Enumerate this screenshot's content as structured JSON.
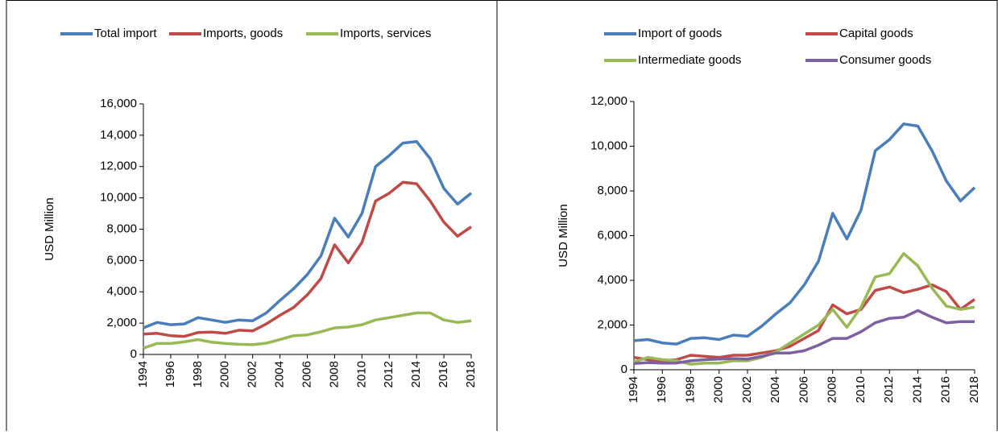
{
  "chart_data": [
    {
      "type": "line",
      "y_label": "USD Million",
      "x": [
        1994,
        1995,
        1996,
        1997,
        1998,
        1999,
        2000,
        2001,
        2002,
        2003,
        2004,
        2005,
        2006,
        2007,
        2008,
        2009,
        2010,
        2011,
        2012,
        2013,
        2014,
        2015,
        2016,
        2017,
        2018
      ],
      "xlim": [
        1994,
        2018
      ],
      "xticks": [
        1994,
        1996,
        1998,
        2000,
        2002,
        2004,
        2006,
        2008,
        2010,
        2012,
        2014,
        2016,
        2018
      ],
      "ylim": [
        0,
        16000
      ],
      "yticks": [
        0,
        {
          "value": 2000,
          "label": "2,000"
        },
        {
          "value": 4000,
          "label": "4,000"
        },
        {
          "value": 6000,
          "label": "6,000"
        },
        {
          "value": 8000,
          "label": "8,000"
        },
        {
          "value": 10000,
          "label": "10,000"
        },
        {
          "value": 12000,
          "label": "12,000"
        },
        {
          "value": 14000,
          "label": "14,000"
        },
        {
          "value": 16000,
          "label": "16,000"
        }
      ],
      "series": [
        {
          "name": "Total import",
          "color": "#4a7ebb",
          "values": [
            1700,
            2050,
            1900,
            1950,
            2350,
            2200,
            2050,
            2200,
            2150,
            2650,
            3450,
            4200,
            5100,
            6300,
            8700,
            7500,
            9000,
            12000,
            12700,
            13500,
            13600,
            12500,
            10600,
            9600,
            10300
          ]
        },
        {
          "name": "Imports, goods",
          "color": "#be4b48",
          "values": [
            1300,
            1350,
            1200,
            1150,
            1400,
            1430,
            1350,
            1550,
            1500,
            1950,
            2500,
            3000,
            3800,
            4850,
            7000,
            5850,
            7150,
            9800,
            10300,
            11000,
            10900,
            9800,
            8450,
            7550,
            8150
          ]
        },
        {
          "name": "Imports, services",
          "color": "#98b954",
          "values": [
            400,
            700,
            700,
            800,
            950,
            780,
            700,
            650,
            620,
            720,
            950,
            1200,
            1250,
            1450,
            1700,
            1750,
            1900,
            2200,
            2350,
            2500,
            2650,
            2650,
            2200,
            2050,
            2150
          ]
        }
      ]
    },
    {
      "type": "line",
      "y_label": "USD Million",
      "x": [
        1994,
        1995,
        1996,
        1997,
        1998,
        1999,
        2000,
        2001,
        2002,
        2003,
        2004,
        2005,
        2006,
        2007,
        2008,
        2009,
        2010,
        2011,
        2012,
        2013,
        2014,
        2015,
        2016,
        2017,
        2018
      ],
      "xlim": [
        1994,
        2018
      ],
      "xticks": [
        1994,
        1996,
        1998,
        2000,
        2002,
        2004,
        2006,
        2008,
        2010,
        2012,
        2014,
        2016,
        2018
      ],
      "ylim": [
        0,
        12000
      ],
      "yticks": [
        0,
        {
          "value": 2000,
          "label": "2,000"
        },
        {
          "value": 4000,
          "label": "4,000"
        },
        {
          "value": 6000,
          "label": "6,000"
        },
        {
          "value": 8000,
          "label": "8,000"
        },
        {
          "value": 10000,
          "label": "10,000"
        },
        {
          "value": 12000,
          "label": "12,000"
        }
      ],
      "series": [
        {
          "name": "Import of goods",
          "color": "#4a7ebb",
          "values": [
            1300,
            1350,
            1200,
            1150,
            1400,
            1430,
            1350,
            1550,
            1500,
            1950,
            2500,
            3000,
            3800,
            4850,
            7000,
            5850,
            7150,
            9800,
            10300,
            11000,
            10900,
            9800,
            8450,
            7550,
            8150
          ]
        },
        {
          "name": "Capital goods",
          "color": "#be4b48",
          "values": [
            550,
            450,
            400,
            450,
            650,
            600,
            550,
            650,
            650,
            750,
            850,
            1050,
            1400,
            1750,
            2900,
            2500,
            2700,
            3550,
            3700,
            3450,
            3600,
            3800,
            3500,
            2700,
            3150
          ]
        },
        {
          "name": "Intermediate goods",
          "color": "#98b954",
          "values": [
            350,
            550,
            450,
            400,
            250,
            300,
            300,
            400,
            400,
            550,
            800,
            1200,
            1600,
            2000,
            2700,
            1900,
            2800,
            4150,
            4300,
            5200,
            4650,
            3650,
            2850,
            2700,
            2800
          ]
        },
        {
          "name": "Consumer goods",
          "color": "#7d60a0",
          "values": [
            280,
            320,
            300,
            300,
            400,
            450,
            480,
            500,
            480,
            600,
            750,
            750,
            850,
            1100,
            1400,
            1400,
            1700,
            2100,
            2300,
            2350,
            2650,
            2350,
            2100,
            2150,
            2150
          ]
        }
      ]
    }
  ]
}
